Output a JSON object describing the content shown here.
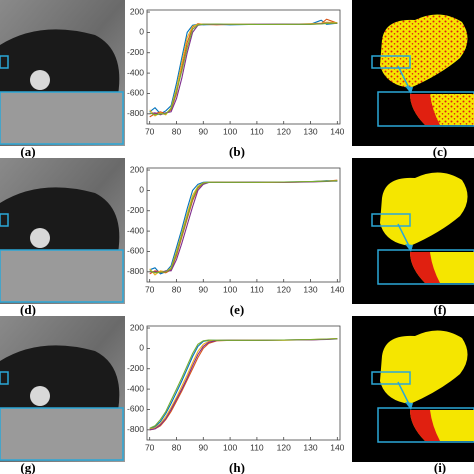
{
  "labels": [
    "(a)",
    "(b)",
    "(c)",
    "(d)",
    "(e)",
    "(f)",
    "(g)",
    "(h)",
    "(i)"
  ],
  "chart_data": [
    {
      "type": "line",
      "xlim": [
        69,
        141
      ],
      "ylim": [
        -900,
        220
      ],
      "xticks": [
        70,
        80,
        90,
        100,
        110,
        120,
        130,
        140
      ],
      "yticks": [
        200,
        0,
        -200,
        -400,
        -600,
        -800
      ],
      "x": [
        70,
        72,
        74,
        76,
        78,
        80,
        82,
        84,
        86,
        88,
        90,
        95,
        100,
        110,
        120,
        130,
        134,
        136,
        140
      ],
      "series": [
        {
          "color": "#0072bd",
          "values": [
            -780,
            -740,
            -800,
            -770,
            -720,
            -500,
            -250,
            0,
            70,
            80,
            75,
            80,
            75,
            80,
            78,
            80,
            120,
            80,
            90
          ]
        },
        {
          "color": "#d95319",
          "values": [
            -830,
            -800,
            -780,
            -800,
            -760,
            -600,
            -350,
            -100,
            50,
            85,
            80,
            75,
            80,
            78,
            80,
            82,
            85,
            130,
            90
          ]
        },
        {
          "color": "#edb120",
          "values": [
            -760,
            -820,
            -790,
            -810,
            -740,
            -550,
            -300,
            -50,
            60,
            80,
            82,
            78,
            80,
            80,
            78,
            85,
            90,
            100,
            95
          ]
        },
        {
          "color": "#7e2f8e",
          "values": [
            -800,
            -790,
            -810,
            -790,
            -780,
            -650,
            -450,
            -200,
            0,
            70,
            80,
            80,
            78,
            80,
            82,
            80,
            85,
            90,
            88
          ]
        },
        {
          "color": "#77ac30",
          "values": [
            -790,
            -810,
            -800,
            -800,
            -750,
            -580,
            -380,
            -150,
            30,
            75,
            80,
            82,
            80,
            78,
            80,
            80,
            82,
            88,
            90
          ]
        }
      ]
    },
    {
      "type": "line",
      "xlim": [
        69,
        141
      ],
      "ylim": [
        -900,
        220
      ],
      "xticks": [
        70,
        80,
        90,
        100,
        110,
        120,
        130,
        140
      ],
      "yticks": [
        200,
        0,
        -200,
        -400,
        -600,
        -800
      ],
      "x": [
        70,
        72,
        74,
        76,
        78,
        80,
        82,
        84,
        86,
        88,
        90,
        92,
        95,
        100,
        110,
        120,
        130,
        136,
        140
      ],
      "series": [
        {
          "color": "#0072bd",
          "values": [
            -780,
            -760,
            -820,
            -800,
            -740,
            -560,
            -380,
            -180,
            0,
            60,
            80,
            82,
            80,
            78,
            80,
            82,
            85,
            95,
            90
          ]
        },
        {
          "color": "#d95319",
          "values": [
            -820,
            -790,
            -800,
            -810,
            -780,
            -640,
            -460,
            -280,
            -100,
            20,
            70,
            80,
            82,
            80,
            78,
            80,
            85,
            90,
            100
          ]
        },
        {
          "color": "#edb120",
          "values": [
            -770,
            -830,
            -790,
            -800,
            -760,
            -600,
            -420,
            -230,
            -50,
            40,
            75,
            80,
            80,
            82,
            80,
            80,
            84,
            92,
            95
          ]
        },
        {
          "color": "#7e2f8e",
          "values": [
            -800,
            -800,
            -810,
            -790,
            -790,
            -680,
            -520,
            -340,
            -160,
            0,
            60,
            78,
            80,
            80,
            82,
            80,
            82,
            88,
            92
          ]
        },
        {
          "color": "#77ac30",
          "values": [
            -790,
            -810,
            -805,
            -800,
            -770,
            -620,
            -440,
            -260,
            -80,
            30,
            72,
            80,
            80,
            80,
            80,
            82,
            86,
            90,
            94
          ]
        }
      ]
    },
    {
      "type": "line",
      "xlim": [
        69,
        141
      ],
      "ylim": [
        -900,
        220
      ],
      "xticks": [
        70,
        80,
        90,
        100,
        110,
        120,
        130,
        140
      ],
      "yticks": [
        200,
        0,
        -200,
        -400,
        -600,
        -800
      ],
      "x": [
        70,
        72,
        74,
        76,
        78,
        80,
        82,
        84,
        86,
        88,
        90,
        92,
        95,
        100,
        110,
        120,
        130,
        136,
        140
      ],
      "series": [
        {
          "color": "#0072bd",
          "values": [
            -790,
            -770,
            -720,
            -640,
            -540,
            -430,
            -320,
            -200,
            -80,
            20,
            70,
            80,
            80,
            82,
            80,
            82,
            85,
            90,
            92
          ]
        },
        {
          "color": "#d95319",
          "values": [
            -800,
            -790,
            -760,
            -700,
            -620,
            -520,
            -420,
            -310,
            -200,
            -90,
            0,
            50,
            75,
            80,
            80,
            82,
            84,
            90,
            95
          ]
        },
        {
          "color": "#edb120",
          "values": [
            -795,
            -780,
            -740,
            -670,
            -580,
            -480,
            -370,
            -260,
            -140,
            -30,
            40,
            70,
            80,
            80,
            82,
            80,
            86,
            92,
            96
          ]
        },
        {
          "color": "#7e2f8e",
          "values": [
            -800,
            -790,
            -750,
            -690,
            -600,
            -500,
            -400,
            -290,
            -170,
            -60,
            20,
            60,
            78,
            80,
            80,
            82,
            84,
            88,
            94
          ]
        },
        {
          "color": "#77ac30",
          "values": [
            -785,
            -760,
            -700,
            -620,
            -510,
            -400,
            -290,
            -170,
            -50,
            40,
            75,
            82,
            80,
            80,
            80,
            82,
            86,
            92,
            95
          ]
        }
      ]
    }
  ]
}
